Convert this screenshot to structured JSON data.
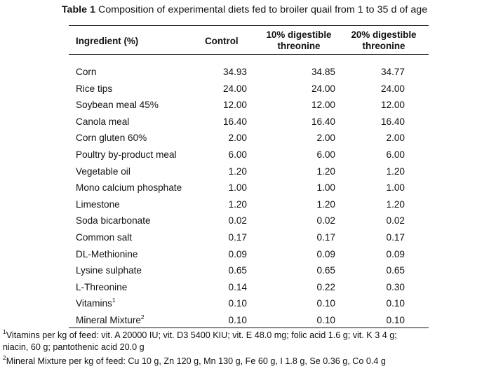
{
  "caption": {
    "label": "Table 1",
    "text": "Composition of experimental diets fed to broiler quail from 1 to 35 d of age"
  },
  "headers": {
    "ingredient": "Ingredient (%)",
    "control": "Control",
    "col2_line1": "10% digestible",
    "col2_line2": "threonine",
    "col3_line1": "20% digestible",
    "col3_line2": "threonine"
  },
  "rows": [
    {
      "ingredient": "Corn",
      "control": "34.93",
      "dig10": "34.85",
      "dig20": "34.77"
    },
    {
      "ingredient": "Rice tips",
      "control": "24.00",
      "dig10": "24.00",
      "dig20": "24.00"
    },
    {
      "ingredient": "Soybean meal 45%",
      "control": "12.00",
      "dig10": "12.00",
      "dig20": "12.00"
    },
    {
      "ingredient": "Canola meal",
      "control": "16.40",
      "dig10": "16.40",
      "dig20": "16.40"
    },
    {
      "ingredient": "Corn gluten 60%",
      "control": "2.00",
      "dig10": "2.00",
      "dig20": "2.00"
    },
    {
      "ingredient": "Poultry by-product meal",
      "control": "6.00",
      "dig10": "6.00",
      "dig20": "6.00"
    },
    {
      "ingredient": "Vegetable oil",
      "control": "1.20",
      "dig10": "1.20",
      "dig20": "1.20"
    },
    {
      "ingredient": "Mono calcium phosphate",
      "control": "1.00",
      "dig10": "1.00",
      "dig20": "1.00"
    },
    {
      "ingredient": "Limestone",
      "control": "1.20",
      "dig10": "1.20",
      "dig20": "1.20"
    },
    {
      "ingredient": "Soda bicarbonate",
      "control": "0.02",
      "dig10": "0.02",
      "dig20": "0.02"
    },
    {
      "ingredient": "Common salt",
      "control": "0.17",
      "dig10": "0.17",
      "dig20": "0.17"
    },
    {
      "ingredient": "DL-Methionine",
      "control": "0.09",
      "dig10": "0.09",
      "dig20": "0.09"
    },
    {
      "ingredient": "Lysine sulphate",
      "control": "0.65",
      "dig10": "0.65",
      "dig20": "0.65"
    },
    {
      "ingredient": "L-Threonine",
      "control": "0.14",
      "dig10": "0.22",
      "dig20": "0.30"
    },
    {
      "ingredient": "Vitamins",
      "sup": "1",
      "control": "0.10",
      "dig10": "0.10",
      "dig20": "0.10"
    },
    {
      "ingredient": "Mineral Mixture",
      "sup": "2",
      "control": "0.10",
      "dig10": "0.10",
      "dig20": "0.10"
    }
  ],
  "footnotes": {
    "note1_mark": "1",
    "note1_line1": "Vitamins per kg of feed: vit. A 20000 IU; vit. D3 5400 KIU; vit. E 48.0 mg; folic acid 1.6 g; vit. K 3 4 g;",
    "note1_line2": "niacin, 60 g; pantothenic acid 20.0 g",
    "note2_mark": "2",
    "note2_text": "Mineral Mixture per kg of feed: Cu 10 g, Zn 120 g, Mn 130 g, Fe 60 g, I 1.8 g, Se 0.36 g, Co 0.4 g"
  }
}
